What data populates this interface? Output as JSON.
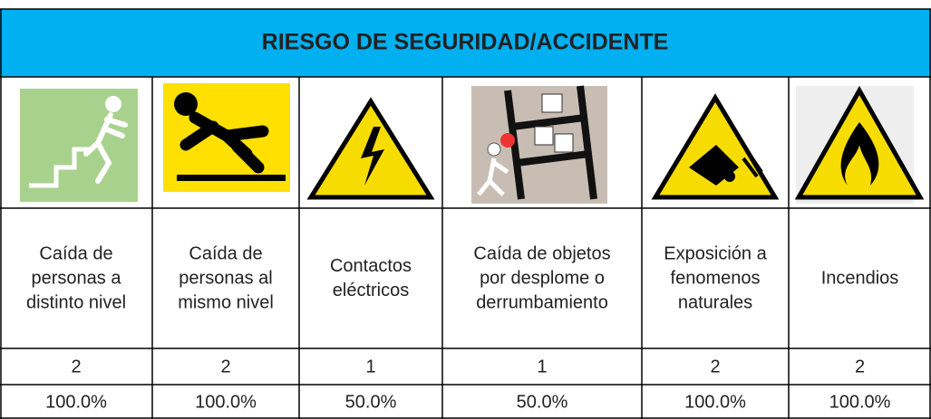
{
  "header": {
    "title": "RIESGO DE SEGURIDAD/ACCIDENTE"
  },
  "columns": [
    {
      "label": [
        "Caída de",
        "personas a",
        "distinto nivel"
      ],
      "count": 2,
      "percent": "100.0%"
    },
    {
      "label": [
        "Caída de",
        "personas al",
        "mismo nivel"
      ],
      "count": 2,
      "percent": "100.0%"
    },
    {
      "label": [
        "Contactos",
        "eléctricos"
      ],
      "count": 1,
      "percent": "50.0%"
    },
    {
      "label": [
        "Caída de objetos",
        "por desplome o",
        "derrumbamiento"
      ],
      "count": 1,
      "percent": "50.0%"
    },
    {
      "label": [
        "Exposición a",
        "fenomenos",
        "naturales"
      ],
      "count": 2,
      "percent": "100.0%"
    },
    {
      "label": [
        "Incendios"
      ],
      "count": 2,
      "percent": "100.0%"
    }
  ]
}
